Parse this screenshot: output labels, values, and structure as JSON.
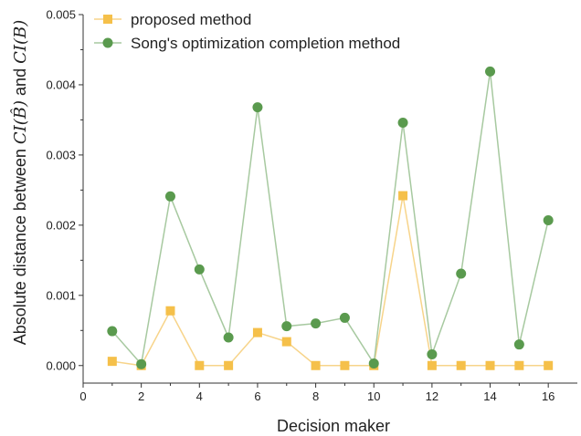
{
  "chart_data": {
    "type": "line",
    "xlabel": "Decision maker",
    "ylabel": {
      "prefix": "Absolute distance between ",
      "term1": "CI(B̂)",
      "joiner": " and ",
      "term2": "CI(B)"
    },
    "xlim": [
      0,
      17
    ],
    "ylim": [
      -0.00025,
      0.005
    ],
    "xticks": [
      0,
      2,
      4,
      6,
      8,
      10,
      12,
      14,
      16
    ],
    "yticks": [
      0,
      0.001,
      0.002,
      0.003,
      0.004,
      0.005
    ],
    "ytick_labels": [
      "0.000",
      "0.001",
      "0.002",
      "0.003",
      "0.004",
      "0.005"
    ],
    "x": [
      1,
      2,
      3,
      4,
      5,
      6,
      7,
      8,
      9,
      10,
      11,
      12,
      13,
      14,
      15,
      16
    ],
    "legend_position": "top-left",
    "grid": false,
    "series": [
      {
        "name": "proposed method",
        "marker": "square",
        "marker_color": "#F5C04A",
        "line_color": "#F7D48A",
        "values": [
          6e-05,
          0.0,
          0.00078,
          0.0,
          0.0,
          0.00047,
          0.00034,
          0.0,
          0.0,
          0.0,
          0.00242,
          0.0,
          0.0,
          0.0,
          0.0,
          0.0
        ]
      },
      {
        "name": "Song's optimization completion method",
        "marker": "circle",
        "marker_color": "#5A9A4E",
        "line_color": "#A7C9A0",
        "values": [
          0.00049,
          2e-05,
          0.00241,
          0.00137,
          0.0004,
          0.00368,
          0.00056,
          0.0006,
          0.00068,
          3e-05,
          0.00346,
          0.00016,
          0.00131,
          0.00419,
          0.0003,
          0.00207
        ]
      }
    ]
  }
}
